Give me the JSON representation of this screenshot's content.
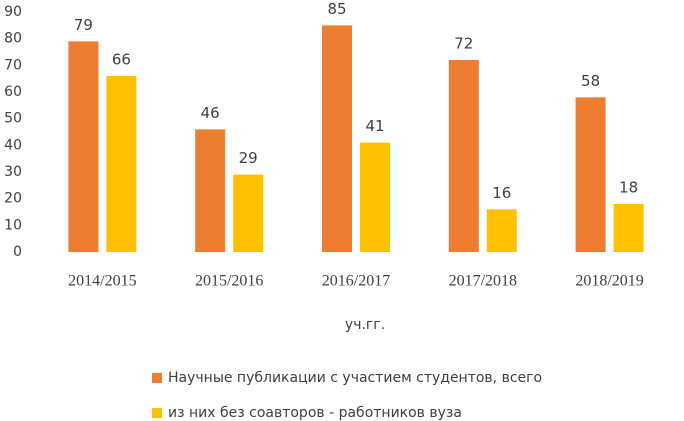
{
  "chart_data": {
    "type": "bar",
    "x_label": "уч.гг.",
    "categories": [
      "2014/2015",
      "2015/2016",
      "2016/2017",
      "2017/2018",
      "2018/2019"
    ],
    "series": [
      {
        "name": "Научные публикации с участием студентов, всего",
        "color": "#ed7d31",
        "values": [
          79,
          46,
          85,
          72,
          58
        ]
      },
      {
        "name": "из них без соавторов - работников вуза",
        "color": "#ffc000",
        "values": [
          66,
          29,
          41,
          16,
          18
        ]
      }
    ],
    "ylim": [
      0,
      90
    ],
    "yticks": [
      0,
      10,
      20,
      30,
      40,
      50,
      60,
      70,
      80,
      90
    ],
    "grid": false,
    "legend": "bottom"
  }
}
